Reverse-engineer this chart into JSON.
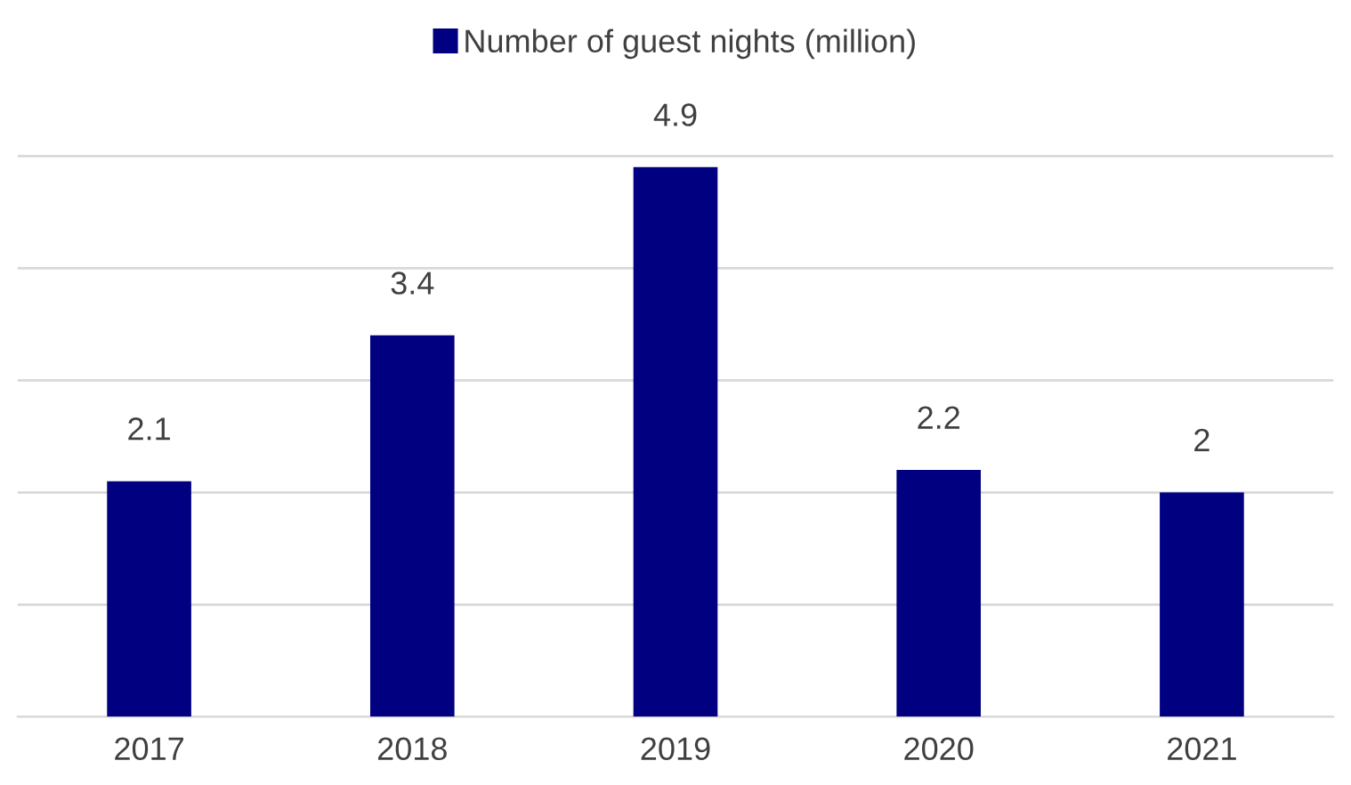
{
  "chart_data": {
    "type": "bar",
    "categories": [
      "2017",
      "2018",
      "2019",
      "2020",
      "2021"
    ],
    "series": [
      {
        "name": "Number of guest nights (million)",
        "color": "#000080",
        "values": [
          2.1,
          3.4,
          4.9,
          2.2,
          2
        ]
      }
    ],
    "data_labels": true,
    "grid": "y",
    "legend": "top",
    "tick_labels": "x"
  }
}
